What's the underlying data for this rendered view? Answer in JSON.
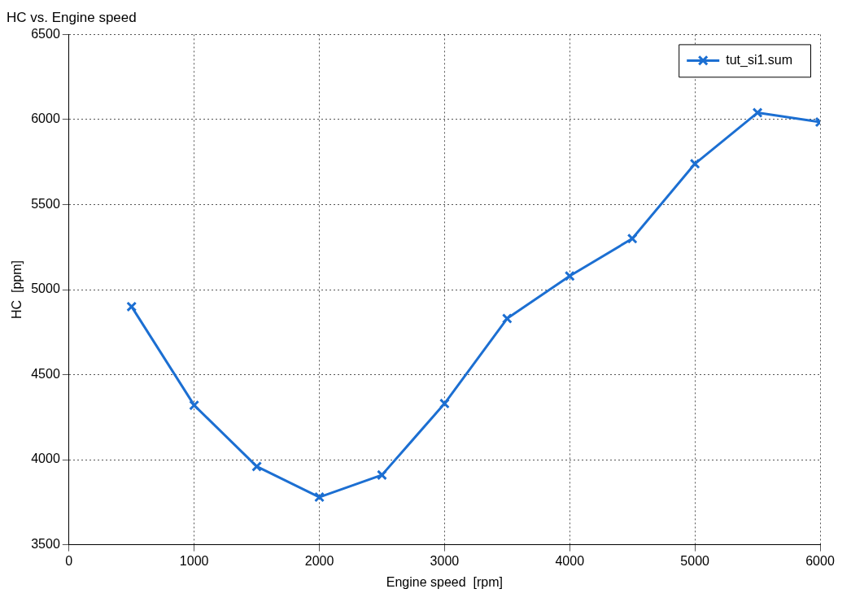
{
  "chart_data": {
    "type": "line",
    "title": "HC vs. Engine speed",
    "xlabel": "Engine speed  [rpm]",
    "ylabel": "HC  [ppm]",
    "x": [
      500,
      1000,
      1500,
      2000,
      2500,
      3000,
      3500,
      4000,
      4500,
      5000,
      5500,
      6000
    ],
    "series": [
      {
        "name": "tut_si1.sum",
        "color": "#1c6fd2",
        "values": [
          4900,
          4320,
          3960,
          3780,
          3910,
          4330,
          4830,
          5080,
          5300,
          5740,
          6040,
          5985
        ]
      }
    ],
    "xlim": [
      0,
      6000
    ],
    "xticks": [
      0,
      1000,
      2000,
      3000,
      4000,
      5000,
      6000
    ],
    "ylim": [
      3500,
      6500
    ],
    "yticks": [
      3500,
      4000,
      4500,
      5000,
      5500,
      6000,
      6500
    ],
    "grid": true,
    "legend": "top right",
    "marker": "cross",
    "line_style": "solid"
  }
}
